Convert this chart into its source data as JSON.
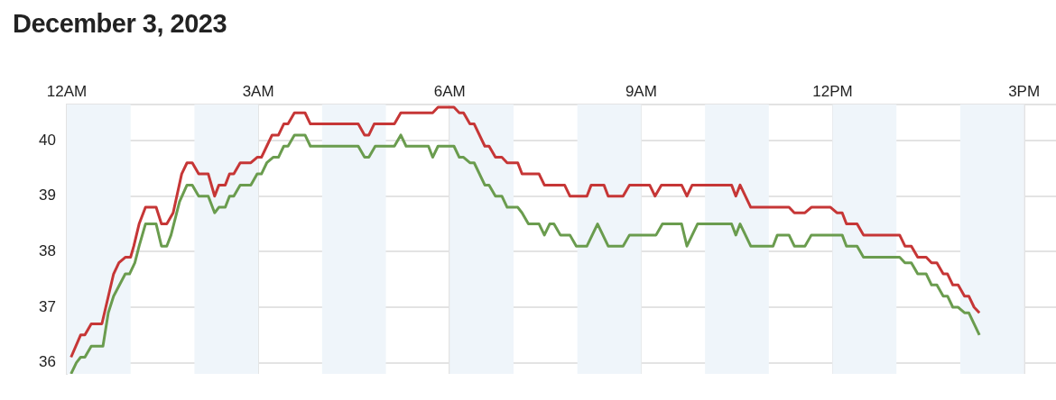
{
  "chart_data": {
    "type": "line",
    "title": "December 3, 2023",
    "xlim": [
      "2023-12-03T00:00",
      "2023-12-03T15:30"
    ],
    "xticks": [
      {
        "value": "2023-12-03T00:00",
        "label": "12AM"
      },
      {
        "value": "2023-12-03T03:00",
        "label": "3AM"
      },
      {
        "value": "2023-12-03T06:00",
        "label": "6AM"
      },
      {
        "value": "2023-12-03T09:00",
        "label": "9AM"
      },
      {
        "value": "2023-12-03T12:00",
        "label": "12PM"
      },
      {
        "value": "2023-12-03T15:00",
        "label": "3PM"
      }
    ],
    "ylim": [
      35.8,
      40.65
    ],
    "yticks": [
      36,
      37,
      38,
      39,
      40
    ],
    "grid": true,
    "marker": "none",
    "bands": [
      {
        "axis": "x",
        "from": "2023-12-03T00:00",
        "to": "2023-12-03T01:00",
        "color": "#eff5fa"
      },
      {
        "axis": "x",
        "from": "2023-12-03T02:00",
        "to": "2023-12-03T03:00",
        "color": "#eff5fa"
      },
      {
        "axis": "x",
        "from": "2023-12-03T04:00",
        "to": "2023-12-03T05:00",
        "color": "#eff5fa"
      },
      {
        "axis": "x",
        "from": "2023-12-03T06:00",
        "to": "2023-12-03T07:00",
        "color": "#eff5fa"
      },
      {
        "axis": "x",
        "from": "2023-12-03T08:00",
        "to": "2023-12-03T09:00",
        "color": "#eff5fa"
      },
      {
        "axis": "x",
        "from": "2023-12-03T10:00",
        "to": "2023-12-03T11:00",
        "color": "#eff5fa"
      },
      {
        "axis": "x",
        "from": "2023-12-03T12:00",
        "to": "2023-12-03T13:00",
        "color": "#eff5fa"
      },
      {
        "axis": "x",
        "from": "2023-12-03T14:00",
        "to": "2023-12-03T15:00",
        "color": "#eff5fa"
      }
    ],
    "series": [
      {
        "color": "#c63636",
        "x": [
          "2023-12-03T00:04",
          "2023-12-03T00:13",
          "2023-12-03T00:17",
          "2023-12-03T00:23",
          "2023-12-03T00:33",
          "2023-12-03T00:44",
          "2023-12-03T00:49",
          "2023-12-03T00:55",
          "2023-12-03T01:00",
          "2023-12-03T01:03",
          "2023-12-03T01:08",
          "2023-12-03T01:14",
          "2023-12-03T01:24",
          "2023-12-03T01:29",
          "2023-12-03T01:34",
          "2023-12-03T01:40",
          "2023-12-03T01:48",
          "2023-12-03T01:53",
          "2023-12-03T01:58",
          "2023-12-03T02:04",
          "2023-12-03T02:13",
          "2023-12-03T02:19",
          "2023-12-03T02:23",
          "2023-12-03T02:29",
          "2023-12-03T02:33",
          "2023-12-03T02:37",
          "2023-12-03T02:43",
          "2023-12-03T02:53",
          "2023-12-03T02:59",
          "2023-12-03T03:03",
          "2023-12-03T03:08",
          "2023-12-03T03:13",
          "2023-12-03T03:19",
          "2023-12-03T03:24",
          "2023-12-03T03:28",
          "2023-12-03T03:34",
          "2023-12-03T03:44",
          "2023-12-03T03:49",
          "2023-12-03T04:34",
          "2023-12-03T04:40",
          "2023-12-03T04:44",
          "2023-12-03T04:49",
          "2023-12-03T05:08",
          "2023-12-03T05:14",
          "2023-12-03T05:44",
          "2023-12-03T05:49",
          "2023-12-03T06:04",
          "2023-12-03T06:09",
          "2023-12-03T06:13",
          "2023-12-03T06:19",
          "2023-12-03T06:23",
          "2023-12-03T06:33",
          "2023-12-03T06:37",
          "2023-12-03T06:43",
          "2023-12-03T06:49",
          "2023-12-03T06:54",
          "2023-12-03T07:04",
          "2023-12-03T07:08",
          "2023-12-03T07:24",
          "2023-12-03T07:29",
          "2023-12-03T07:48",
          "2023-12-03T07:53",
          "2023-12-03T08:09",
          "2023-12-03T08:13",
          "2023-12-03T08:25",
          "2023-12-03T08:29",
          "2023-12-03T08:43",
          "2023-12-03T08:49",
          "2023-12-03T09:08",
          "2023-12-03T09:13",
          "2023-12-03T09:19",
          "2023-12-03T09:38",
          "2023-12-03T09:43",
          "2023-12-03T09:48",
          "2023-12-03T10:25",
          "2023-12-03T10:29",
          "2023-12-03T10:33",
          "2023-12-03T10:43",
          "2023-12-03T11:19",
          "2023-12-03T11:24",
          "2023-12-03T11:34",
          "2023-12-03T11:40",
          "2023-12-03T11:58",
          "2023-12-03T12:04",
          "2023-12-03T12:09",
          "2023-12-03T12:13",
          "2023-12-03T12:23",
          "2023-12-03T12:29",
          "2023-12-03T13:03",
          "2023-12-03T13:08",
          "2023-12-03T13:14",
          "2023-12-03T13:20",
          "2023-12-03T13:28",
          "2023-12-03T13:33",
          "2023-12-03T13:38",
          "2023-12-03T13:44",
          "2023-12-03T13:48",
          "2023-12-03T13:53",
          "2023-12-03T13:58",
          "2023-12-03T14:04",
          "2023-12-03T14:08",
          "2023-12-03T14:13",
          "2023-12-03T14:18"
        ],
        "values": [
          36.1,
          36.5,
          36.5,
          36.7,
          36.7,
          37.6,
          37.8,
          37.9,
          37.9,
          38.1,
          38.5,
          38.8,
          38.8,
          38.5,
          38.5,
          38.7,
          39.4,
          39.6,
          39.6,
          39.4,
          39.4,
          39.0,
          39.2,
          39.2,
          39.4,
          39.4,
          39.6,
          39.6,
          39.7,
          39.7,
          39.9,
          40.1,
          40.1,
          40.3,
          40.3,
          40.5,
          40.5,
          40.3,
          40.3,
          40.1,
          40.1,
          40.3,
          40.3,
          40.5,
          40.5,
          40.6,
          40.6,
          40.5,
          40.5,
          40.3,
          40.3,
          39.9,
          39.9,
          39.7,
          39.7,
          39.6,
          39.6,
          39.4,
          39.4,
          39.2,
          39.2,
          39.0,
          39.0,
          39.2,
          39.2,
          39.0,
          39.0,
          39.2,
          39.2,
          39.0,
          39.2,
          39.2,
          39.0,
          39.2,
          39.2,
          39.0,
          39.2,
          38.8,
          38.8,
          38.7,
          38.7,
          38.8,
          38.8,
          38.7,
          38.7,
          38.5,
          38.5,
          38.3,
          38.3,
          38.1,
          38.1,
          37.9,
          37.9,
          37.8,
          37.8,
          37.6,
          37.6,
          37.4,
          37.4,
          37.2,
          37.2,
          37.0,
          36.9
        ]
      },
      {
        "color": "#6a9c4e",
        "x": [
          "2023-12-03T00:04",
          "2023-12-03T00:09",
          "2023-12-03T00:13",
          "2023-12-03T00:17",
          "2023-12-03T00:23",
          "2023-12-03T00:34",
          "2023-12-03T00:39",
          "2023-12-03T00:44",
          "2023-12-03T00:55",
          "2023-12-03T00:59",
          "2023-12-03T01:04",
          "2023-12-03T01:08",
          "2023-12-03T01:14",
          "2023-12-03T01:24",
          "2023-12-03T01:29",
          "2023-12-03T01:34",
          "2023-12-03T01:38",
          "2023-12-03T01:46",
          "2023-12-03T01:53",
          "2023-12-03T01:58",
          "2023-12-03T02:04",
          "2023-12-03T02:13",
          "2023-12-03T02:19",
          "2023-12-03T02:23",
          "2023-12-03T02:29",
          "2023-12-03T02:33",
          "2023-12-03T02:37",
          "2023-12-03T02:43",
          "2023-12-03T02:53",
          "2023-12-03T02:59",
          "2023-12-03T03:03",
          "2023-12-03T03:08",
          "2023-12-03T03:14",
          "2023-12-03T03:19",
          "2023-12-03T03:24",
          "2023-12-03T03:28",
          "2023-12-03T03:34",
          "2023-12-03T03:44",
          "2023-12-03T03:49",
          "2023-12-03T04:34",
          "2023-12-03T04:40",
          "2023-12-03T04:44",
          "2023-12-03T04:50",
          "2023-12-03T05:08",
          "2023-12-03T05:14",
          "2023-12-03T05:19",
          "2023-12-03T05:40",
          "2023-12-03T05:44",
          "2023-12-03T05:49",
          "2023-12-03T06:04",
          "2023-12-03T06:09",
          "2023-12-03T06:13",
          "2023-12-03T06:19",
          "2023-12-03T06:23",
          "2023-12-03T06:33",
          "2023-12-03T06:37",
          "2023-12-03T06:43",
          "2023-12-03T06:49",
          "2023-12-03T06:54",
          "2023-12-03T07:04",
          "2023-12-03T07:08",
          "2023-12-03T07:14",
          "2023-12-03T07:24",
          "2023-12-03T07:29",
          "2023-12-03T07:34",
          "2023-12-03T07:38",
          "2023-12-03T07:44",
          "2023-12-03T07:53",
          "2023-12-03T07:59",
          "2023-12-03T08:09",
          "2023-12-03T08:19",
          "2023-12-03T08:29",
          "2023-12-03T08:43",
          "2023-12-03T08:49",
          "2023-12-03T09:14",
          "2023-12-03T09:20",
          "2023-12-03T09:38",
          "2023-12-03T09:43",
          "2023-12-03T09:53",
          "2023-12-03T10:25",
          "2023-12-03T10:29",
          "2023-12-03T10:33",
          "2023-12-03T10:43",
          "2023-12-03T11:04",
          "2023-12-03T11:08",
          "2023-12-03T11:19",
          "2023-12-03T11:24",
          "2023-12-03T11:34",
          "2023-12-03T11:40",
          "2023-12-03T12:09",
          "2023-12-03T12:13",
          "2023-12-03T12:23",
          "2023-12-03T12:29",
          "2023-12-03T13:03",
          "2023-12-03T13:08",
          "2023-12-03T13:14",
          "2023-12-03T13:20",
          "2023-12-03T13:28",
          "2023-12-03T13:33",
          "2023-12-03T13:38",
          "2023-12-03T13:44",
          "2023-12-03T13:48",
          "2023-12-03T13:53",
          "2023-12-03T13:58",
          "2023-12-03T14:04",
          "2023-12-03T14:08",
          "2023-12-03T14:18"
        ],
        "values": [
          35.8,
          36.0,
          36.1,
          36.1,
          36.3,
          36.3,
          36.9,
          37.2,
          37.6,
          37.6,
          37.8,
          38.1,
          38.5,
          38.5,
          38.1,
          38.1,
          38.3,
          38.9,
          39.2,
          39.2,
          39.0,
          39.0,
          38.7,
          38.8,
          38.8,
          39.0,
          39.0,
          39.2,
          39.2,
          39.4,
          39.4,
          39.6,
          39.7,
          39.7,
          39.9,
          39.9,
          40.1,
          40.1,
          39.9,
          39.9,
          39.7,
          39.7,
          39.9,
          39.9,
          40.1,
          39.9,
          39.9,
          39.7,
          39.9,
          39.9,
          39.7,
          39.7,
          39.6,
          39.6,
          39.2,
          39.2,
          39.0,
          39.0,
          38.8,
          38.8,
          38.7,
          38.5,
          38.5,
          38.3,
          38.5,
          38.5,
          38.3,
          38.3,
          38.1,
          38.1,
          38.5,
          38.1,
          38.1,
          38.3,
          38.3,
          38.5,
          38.5,
          38.1,
          38.5,
          38.5,
          38.3,
          38.5,
          38.1,
          38.1,
          38.3,
          38.3,
          38.1,
          38.1,
          38.3,
          38.3,
          38.1,
          38.1,
          37.9,
          37.9,
          37.8,
          37.8,
          37.6,
          37.6,
          37.4,
          37.4,
          37.2,
          37.2,
          37.0,
          37.0,
          36.9,
          36.9,
          36.5
        ]
      }
    ]
  }
}
